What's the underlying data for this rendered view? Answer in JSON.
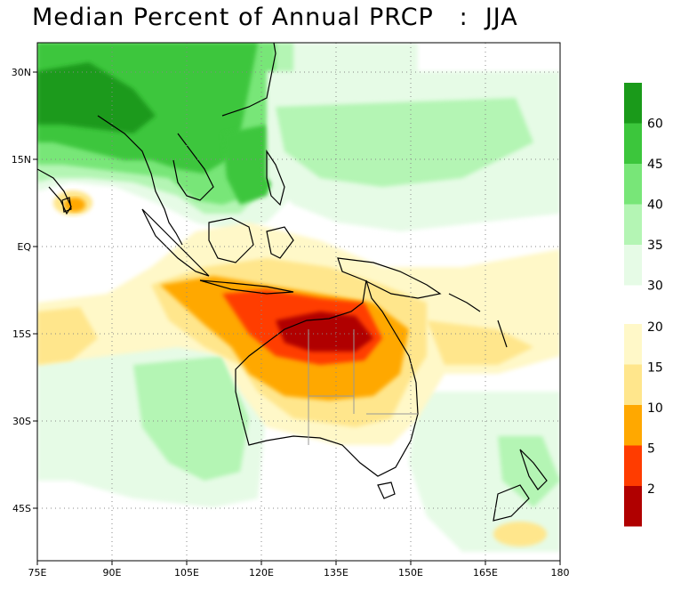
{
  "title": "Median Percent of Annual PRCP   :  JJA",
  "axes": {
    "x_ticks": [
      "75E",
      "90E",
      "105E",
      "120E",
      "135E",
      "150E",
      "165E",
      "180"
    ],
    "y_ticks": [
      "30N",
      "15N",
      "EQ",
      "15S",
      "30S",
      "45S"
    ]
  },
  "colorbar": {
    "upper_labels": [
      "60",
      "45",
      "40",
      "35",
      "30"
    ],
    "lower_labels": [
      "20",
      "15",
      "10",
      "5",
      "2"
    ],
    "colors": {
      "c60plus": "#1a9a1a",
      "c45": "#3cc63c",
      "c40": "#78e678",
      "c35": "#b4f5b4",
      "c30": "#e6fbe6",
      "c20": "#fff8c8",
      "c15": "#ffe68c",
      "c10": "#ffa800",
      "c5": "#ff3c00",
      "c2": "#b00000"
    }
  }
}
